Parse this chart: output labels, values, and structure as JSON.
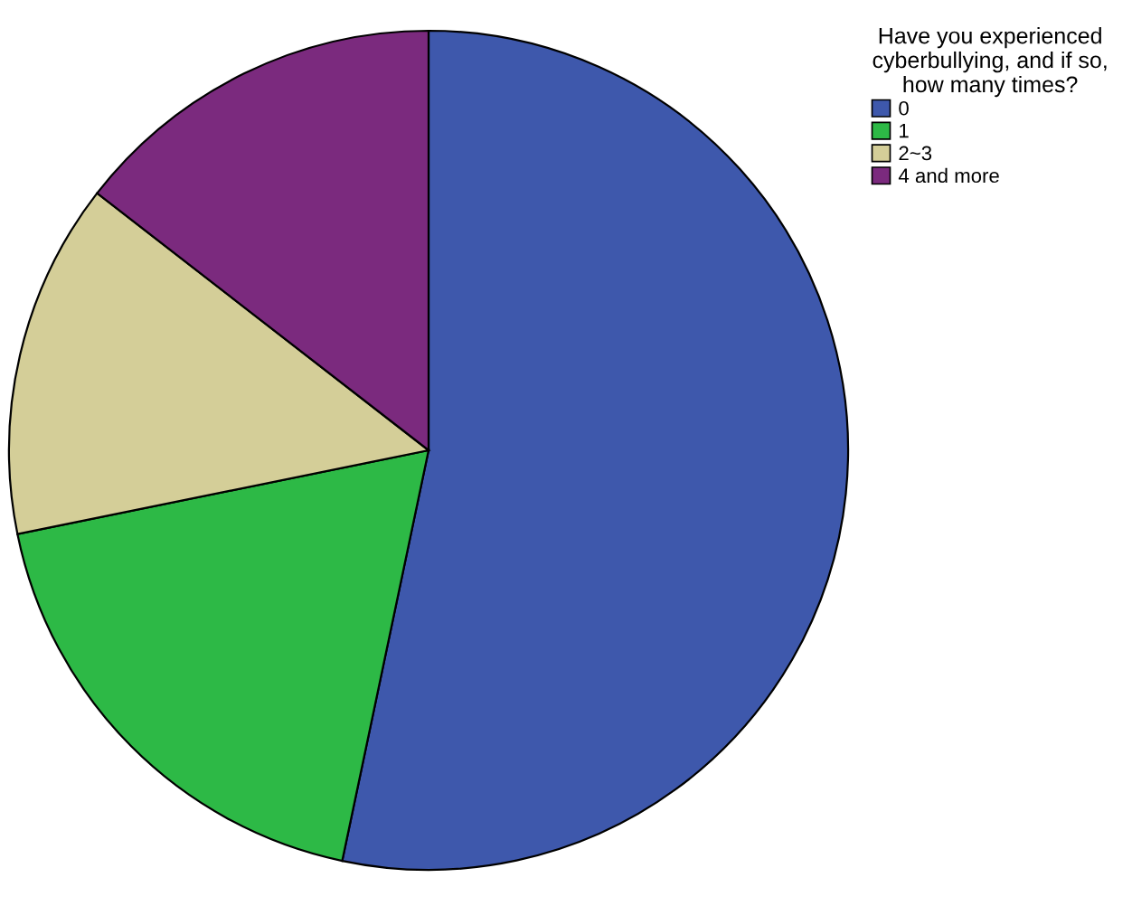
{
  "chart_data": {
    "type": "pie",
    "legend_title": "Have you experienced\ncyberbullying, and if so,\nhow many times?",
    "categories": [
      "0",
      "1",
      "2~3",
      "4 and more"
    ],
    "values": [
      53.3,
      18.5,
      13.7,
      14.5
    ],
    "colors": [
      "#3e58ac",
      "#2db946",
      "#d4ce98",
      "#7b2a7e"
    ],
    "legend": "top right"
  }
}
